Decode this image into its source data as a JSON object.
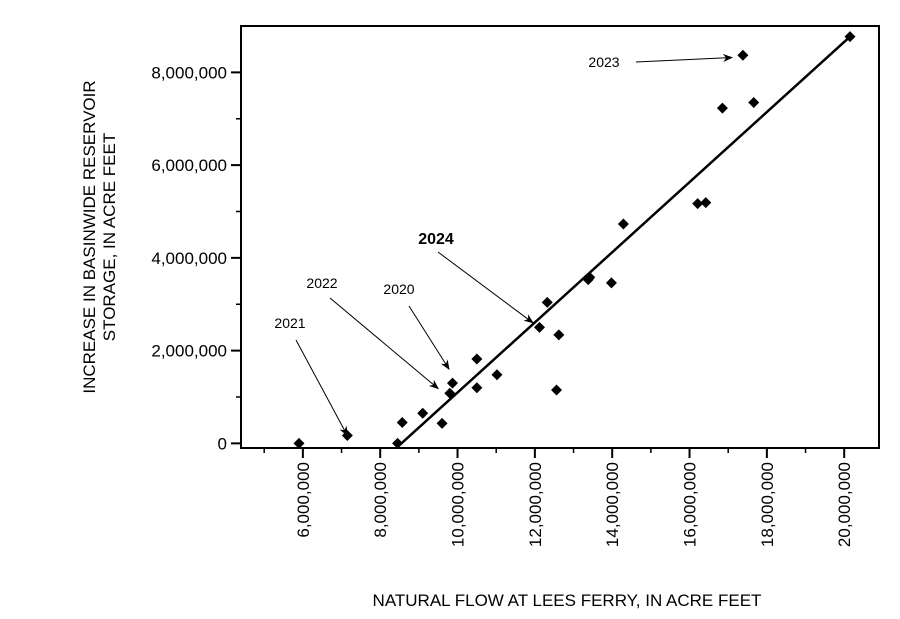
{
  "chart_data": {
    "type": "scatter",
    "title": "",
    "xlabel": "NATURAL FLOW AT LEES FERRY, IN ACRE FEET",
    "ylabel_line1": "INCREASE IN BASINWIDE RESERVOIR",
    "ylabel_line2": "STORAGE, IN ACRE FEET",
    "xlim": [
      4400000,
      20900000
    ],
    "ylim": [
      -100000,
      9000000
    ],
    "x_ticks": [
      6000000,
      8000000,
      10000000,
      12000000,
      14000000,
      16000000,
      18000000,
      20000000
    ],
    "x_tick_labels": [
      "6,000,000",
      "8,000,000",
      "10,000,000",
      "12,000,000",
      "14,000,000",
      "16,000,000",
      "18,000,000",
      "20,000,000"
    ],
    "y_ticks": [
      0,
      2000000,
      4000000,
      6000000,
      8000000
    ],
    "y_tick_labels": [
      "0",
      "2,000,000",
      "4,000,000",
      "6,000,000",
      "8,000,000"
    ],
    "grid": false,
    "marker_color": "#000000",
    "series": [
      {
        "points": [
          {
            "x": 5900000,
            "y": 0
          },
          {
            "x": 7150000,
            "y": 170000
          },
          {
            "x": 8450000,
            "y": 0
          },
          {
            "x": 8570000,
            "y": 450000
          },
          {
            "x": 9100000,
            "y": 650000
          },
          {
            "x": 9600000,
            "y": 430000
          },
          {
            "x": 9800000,
            "y": 1080000
          },
          {
            "x": 9870000,
            "y": 1300000
          },
          {
            "x": 10500000,
            "y": 1200000
          },
          {
            "x": 10500000,
            "y": 1820000
          },
          {
            "x": 11020000,
            "y": 1480000
          },
          {
            "x": 12120000,
            "y": 2500000
          },
          {
            "x": 12320000,
            "y": 3040000
          },
          {
            "x": 12560000,
            "y": 1150000
          },
          {
            "x": 12620000,
            "y": 2340000
          },
          {
            "x": 13380000,
            "y": 3530000
          },
          {
            "x": 13420000,
            "y": 3580000
          },
          {
            "x": 13980000,
            "y": 3460000
          },
          {
            "x": 14290000,
            "y": 4730000
          },
          {
            "x": 16210000,
            "y": 5170000
          },
          {
            "x": 16420000,
            "y": 5190000
          },
          {
            "x": 16850000,
            "y": 7230000
          },
          {
            "x": 17380000,
            "y": 8370000
          },
          {
            "x": 17660000,
            "y": 7350000
          },
          {
            "x": 20150000,
            "y": 8770000
          }
        ]
      }
    ],
    "trendline": {
      "x": [
        8550000,
        20150000
      ],
      "y": [
        0,
        8770000
      ]
    },
    "annotations": [
      {
        "label": "2021",
        "bold": false,
        "point": {
          "x": 7150000,
          "y": 170000
        }
      },
      {
        "label": "2022",
        "bold": false,
        "point": {
          "x": 9500000,
          "y": 1180000
        }
      },
      {
        "label": "2020",
        "bold": false,
        "point": {
          "x": 9780000,
          "y": 1600000
        }
      },
      {
        "label": "2024",
        "bold": true,
        "point": {
          "x": 11950000,
          "y": 2600000
        }
      },
      {
        "label": "2023",
        "bold": false,
        "point": {
          "x": 17100000,
          "y": 8320000
        }
      }
    ]
  }
}
